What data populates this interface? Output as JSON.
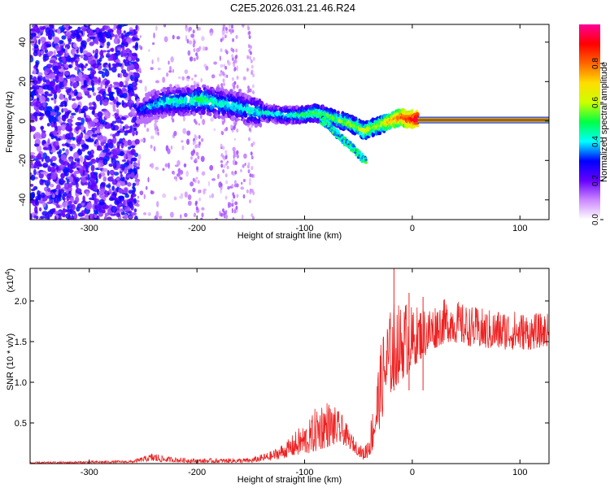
{
  "figure_title": "C2E5.2026.031.21.46.R24",
  "chart_data": [
    {
      "type": "heatmap",
      "title": "C2E5.2026.031.21.46.R24",
      "xlabel": "Height of straight line (km)",
      "ylabel": "Frequency (Hz)",
      "xlim": [
        -355,
        127
      ],
      "ylim": [
        -50,
        49
      ],
      "x_ticks": [
        -300,
        -200,
        -100,
        0,
        100
      ],
      "x_tick_labels": [
        "-300",
        "-200",
        "-100",
        "0",
        "100"
      ],
      "y_ticks": [
        -40,
        -20,
        0,
        20,
        40
      ],
      "y_tick_labels": [
        "-40",
        "-20",
        "0",
        "20",
        "40"
      ],
      "ridge": {
        "x": [
          -255,
          -240,
          -225,
          -210,
          -195,
          -180,
          -165,
          -150,
          -135,
          -120,
          -105,
          -90,
          -80,
          -70,
          -60,
          -50,
          -45,
          -40,
          -35,
          -30,
          -25,
          -20,
          -15,
          -10,
          -5,
          0,
          5
        ],
        "freq": [
          5,
          8,
          10,
          10,
          11,
          9,
          8,
          5,
          4,
          3,
          3,
          4,
          3,
          1,
          -1,
          -3,
          -5,
          -4,
          -3,
          -2,
          -1,
          0,
          1,
          2,
          1,
          1,
          1
        ],
        "amplitude": [
          0.3,
          0.4,
          0.45,
          0.45,
          0.5,
          0.45,
          0.45,
          0.45,
          0.45,
          0.45,
          0.5,
          0.55,
          0.55,
          0.55,
          0.6,
          0.6,
          0.65,
          0.65,
          0.6,
          0.65,
          0.7,
          0.75,
          0.8,
          0.85,
          0.9,
          0.95,
          1.0
        ]
      },
      "branch": {
        "x": [
          -85,
          -75,
          -65,
          -55,
          -48,
          -43
        ],
        "freq": [
          1,
          -4,
          -9,
          -14,
          -18,
          -20
        ]
      },
      "flat_line": {
        "x_from": 5,
        "x_to": 127,
        "freq": 0.5,
        "amplitude": 0.95
      }
    },
    {
      "type": "colorbar",
      "label": "Normalized spectral amplitude",
      "range": [
        0,
        1
      ],
      "ticks": [
        0,
        0.2,
        0.4,
        0.6,
        0.8
      ],
      "tick_labels": [
        "0.0",
        "0.2",
        "0.4",
        "0.6",
        "0.8"
      ],
      "colors": [
        "#ffffff",
        "#cc88ff",
        "#6600ff",
        "#0000ff",
        "#00ffff",
        "#00ff44",
        "#ccff00",
        "#ffdd00",
        "#ff6600",
        "#ff0000",
        "#ff0099"
      ]
    },
    {
      "type": "line",
      "xlabel": "Height of straight line (km)",
      "ylabel": "SNR (10 * v/v)",
      "exponent_label": "(x10",
      "exponent_sup": "4",
      "exponent_close": ")",
      "xlim": [
        -355,
        127
      ],
      "ylim": [
        0,
        2.4
      ],
      "x_ticks": [
        -300,
        -200,
        -100,
        0,
        100
      ],
      "x_tick_labels": [
        "-300",
        "-200",
        "-100",
        "0",
        "100"
      ],
      "y_ticks": [
        0.5,
        1.0,
        1.5,
        2.0
      ],
      "y_tick_labels": [
        "0.5",
        "1.0",
        "1.5",
        "2.0"
      ],
      "line_color": "#ee2222",
      "envelope": {
        "x": [
          -355,
          -260,
          -245,
          -240,
          -230,
          -200,
          -150,
          -130,
          -115,
          -105,
          -95,
          -88,
          -80,
          -72,
          -65,
          -58,
          -50,
          -45,
          -40,
          -35,
          -30,
          -25,
          -20,
          -17,
          -15,
          -12,
          -8,
          -3,
          0,
          5,
          15,
          25,
          35,
          50,
          70,
          90,
          110,
          127
        ],
        "low": [
          0.0,
          0.01,
          0.03,
          0.02,
          0.02,
          0.01,
          0.01,
          0.04,
          0.08,
          0.1,
          0.12,
          0.15,
          0.2,
          0.22,
          0.24,
          0.18,
          0.1,
          0.04,
          0.08,
          0.2,
          0.45,
          0.7,
          0.85,
          0.9,
          0.95,
          1.0,
          1.05,
          1.1,
          1.15,
          1.25,
          1.35,
          1.45,
          1.5,
          1.45,
          1.4,
          1.4,
          1.4,
          1.45
        ],
        "high": [
          0.02,
          0.04,
          0.11,
          0.14,
          0.09,
          0.06,
          0.07,
          0.16,
          0.3,
          0.45,
          0.55,
          0.75,
          0.8,
          0.7,
          0.6,
          0.4,
          0.25,
          0.2,
          0.4,
          0.9,
          1.4,
          1.8,
          1.9,
          2.0,
          2.05,
          1.95,
          2.0,
          2.05,
          1.9,
          1.95,
          1.95,
          2.0,
          2.05,
          1.95,
          1.9,
          1.9,
          1.85,
          1.85
        ]
      },
      "spikes": [
        {
          "x": -17,
          "y": 2.4
        },
        {
          "x": 10,
          "y": 2.05
        },
        {
          "x": -3,
          "y": 2.1
        }
      ]
    }
  ]
}
